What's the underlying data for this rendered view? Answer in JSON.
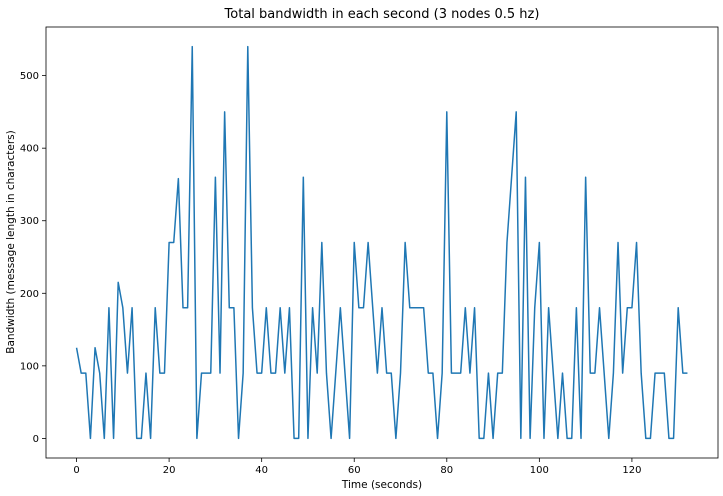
{
  "chart_data": {
    "type": "line",
    "title": "Total bandwidth in each second (3 nodes 0.5 hz)",
    "xlabel": "Time (seconds)",
    "ylabel": "Bandwidth (message length in characters)",
    "xlim": [
      -6.6,
      138.6
    ],
    "ylim": [
      -27,
      567
    ],
    "xticks": [
      0,
      20,
      40,
      60,
      80,
      100,
      120
    ],
    "yticks": [
      0,
      100,
      200,
      300,
      400,
      500
    ],
    "grid": false,
    "line_color": "#1f77b4",
    "series": [
      {
        "x": [
          0,
          1,
          2,
          3,
          4,
          5,
          6,
          7,
          8,
          9,
          10,
          11,
          12,
          13,
          14,
          15,
          16,
          17,
          18,
          19,
          20,
          21,
          22,
          23,
          24,
          25,
          26,
          27,
          28,
          29,
          30,
          31,
          32,
          33,
          34,
          35,
          36,
          37,
          38,
          39,
          40,
          41,
          42,
          43,
          44,
          45,
          46,
          47,
          48,
          49,
          50,
          51,
          52,
          53,
          54,
          55,
          56,
          57,
          58,
          59,
          60,
          61,
          62,
          63,
          64,
          65,
          66,
          67,
          68,
          69,
          70,
          71,
          72,
          73,
          74,
          75,
          76,
          77,
          78,
          79,
          80,
          81,
          82,
          83,
          84,
          85,
          86,
          87,
          88,
          89,
          90,
          91,
          92,
          93,
          94,
          95,
          96,
          97,
          98,
          99,
          100,
          101,
          102,
          103,
          104,
          105,
          106,
          107,
          108,
          109,
          110,
          111,
          112,
          113,
          114,
          115,
          116,
          117,
          118,
          119,
          120,
          121,
          122,
          123,
          124,
          125,
          126,
          127,
          128,
          129,
          130,
          131,
          132
        ],
        "y": [
          125,
          90,
          90,
          0,
          125,
          90,
          0,
          180,
          0,
          215,
          180,
          90,
          180,
          0,
          0,
          90,
          0,
          180,
          90,
          90,
          270,
          270,
          358,
          180,
          180,
          540,
          0,
          90,
          90,
          90,
          360,
          90,
          450,
          180,
          180,
          0,
          90,
          540,
          180,
          90,
          90,
          180,
          90,
          90,
          180,
          90,
          180,
          0,
          0,
          360,
          0,
          180,
          90,
          270,
          90,
          0,
          90,
          180,
          90,
          0,
          270,
          180,
          180,
          270,
          180,
          90,
          180,
          90,
          90,
          0,
          90,
          270,
          180,
          180,
          180,
          180,
          90,
          90,
          0,
          90,
          450,
          90,
          90,
          90,
          180,
          90,
          180,
          0,
          0,
          90,
          0,
          90,
          90,
          270,
          360,
          450,
          0,
          360,
          0,
          180,
          270,
          0,
          180,
          90,
          0,
          90,
          0,
          0,
          180,
          0,
          360,
          90,
          90,
          180,
          90,
          0,
          90,
          270,
          90,
          180,
          180,
          270,
          90,
          0,
          0,
          90,
          90,
          90,
          0,
          0,
          180,
          90,
          90
        ]
      }
    ]
  }
}
